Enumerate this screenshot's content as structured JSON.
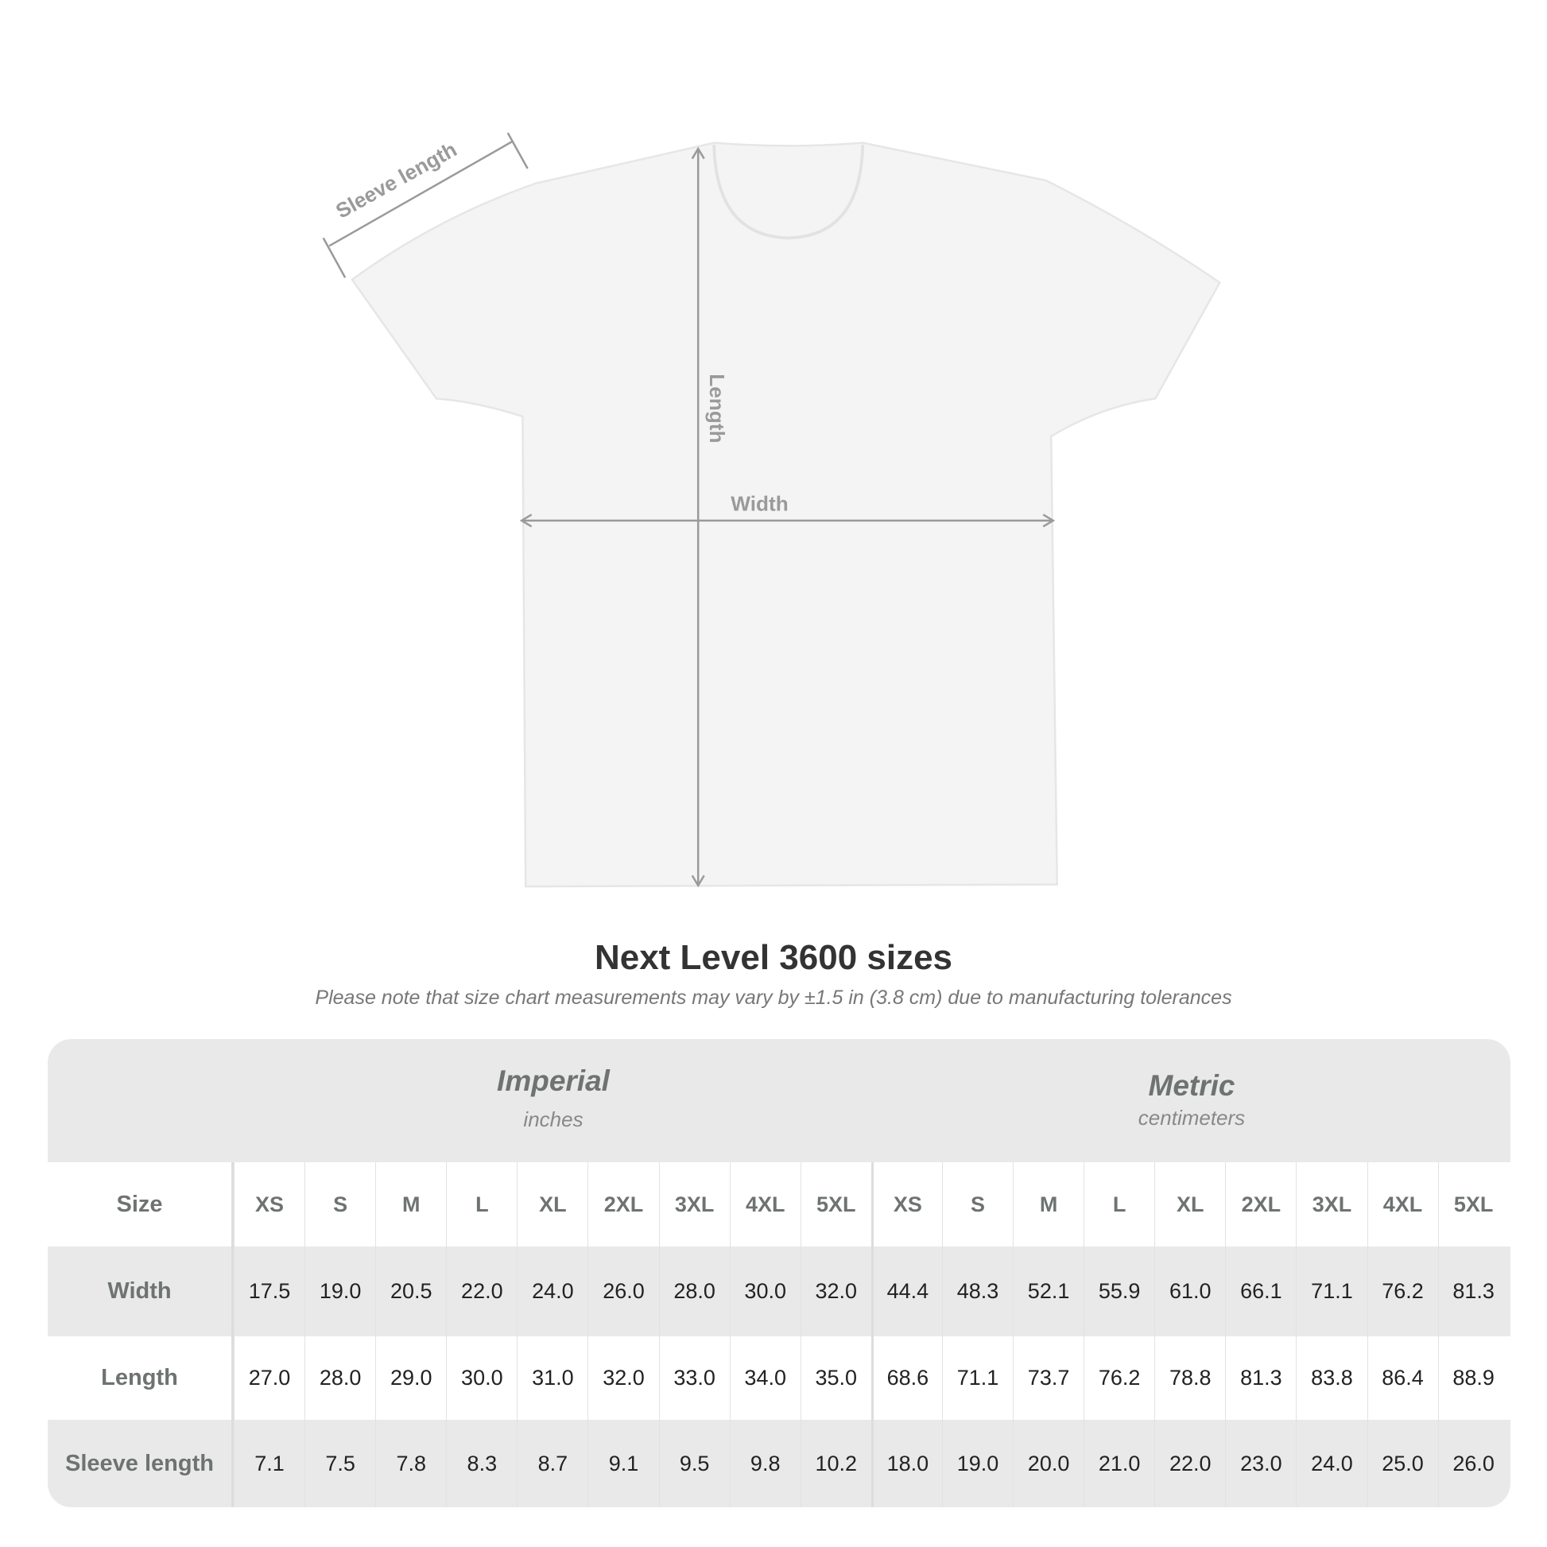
{
  "diagram": {
    "labels": {
      "sleeve": "Sleeve length",
      "length": "Length",
      "width": "Width"
    },
    "shirt_color": "#f4f4f4",
    "arrow_color": "#9a9a9a"
  },
  "title": "Next Level 3600 sizes",
  "subtitle": "Please note that size chart measurements may vary by ±1.5 in (3.8 cm) due to manufacturing tolerances",
  "table": {
    "imperial": {
      "name": "Imperial",
      "unit": "inches"
    },
    "metric": {
      "name": "Metric",
      "unit": "centimeters"
    },
    "size_label": "Size",
    "sizes": [
      "XS",
      "S",
      "M",
      "L",
      "XL",
      "2XL",
      "3XL",
      "4XL",
      "5XL"
    ],
    "rows": [
      {
        "label": "Width",
        "imperial": [
          "17.5",
          "19.0",
          "20.5",
          "22.0",
          "24.0",
          "26.0",
          "28.0",
          "30.0",
          "32.0"
        ],
        "metric": [
          "44.4",
          "48.3",
          "52.1",
          "55.9",
          "61.0",
          "66.1",
          "71.1",
          "76.2",
          "81.3"
        ]
      },
      {
        "label": "Length",
        "imperial": [
          "27.0",
          "28.0",
          "29.0",
          "30.0",
          "31.0",
          "32.0",
          "33.0",
          "34.0",
          "35.0"
        ],
        "metric": [
          "68.6",
          "71.1",
          "73.7",
          "76.2",
          "78.8",
          "81.3",
          "83.8",
          "86.4",
          "88.9"
        ]
      },
      {
        "label": "Sleeve length",
        "imperial": [
          "7.1",
          "7.5",
          "7.8",
          "8.3",
          "8.7",
          "9.1",
          "9.5",
          "9.8",
          "10.2"
        ],
        "metric": [
          "18.0",
          "19.0",
          "20.0",
          "21.0",
          "22.0",
          "23.0",
          "24.0",
          "25.0",
          "26.0"
        ]
      }
    ]
  }
}
